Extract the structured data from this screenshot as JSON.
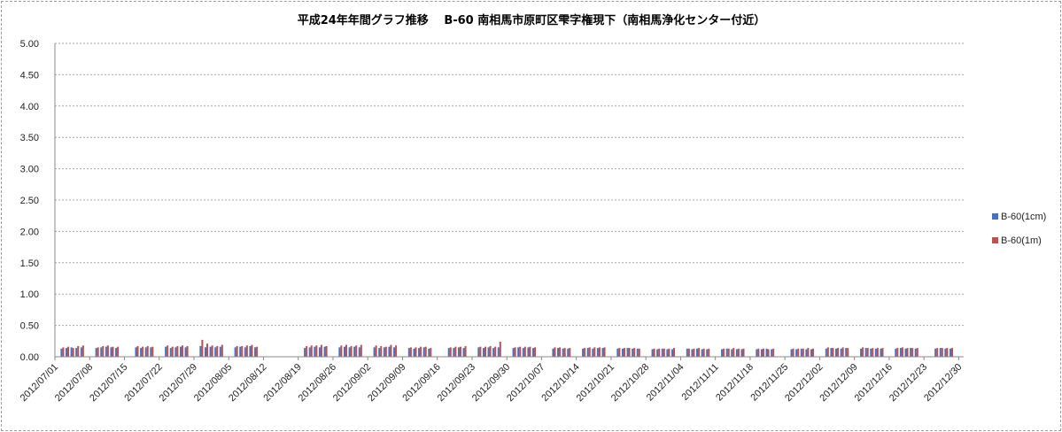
{
  "chart_data": {
    "type": "bar",
    "title": "平成24年年間グラフ推移　 B-60 南相馬市原町区雫字権現下（南相馬浄化センター付近）",
    "ylim": [
      0,
      5
    ],
    "yticks": [
      "0.00",
      "0.50",
      "1.00",
      "1.50",
      "2.00",
      "2.50",
      "3.00",
      "3.50",
      "4.00",
      "4.50",
      "5.00"
    ],
    "xtick_labels": [
      "2012/07/01",
      "2012/07/08",
      "2012/07/15",
      "2012/07/22",
      "2012/07/29",
      "2012/08/05",
      "2012/08/12",
      "2012/08/19",
      "2012/08/26",
      "2012/09/02",
      "2012/09/09",
      "2012/09/16",
      "2012/09/23",
      "2012/09/30",
      "2012/10/07",
      "2012/10/14",
      "2012/10/21",
      "2012/10/28",
      "2012/11/04",
      "2012/11/11",
      "2012/11/18",
      "2012/11/25",
      "2012/12/02",
      "2012/12/09",
      "2012/12/16",
      "2012/12/23",
      "2012/12/30"
    ],
    "x_start": "2012/07/01",
    "x_end": "2012/12/30",
    "grid": true,
    "legend_position": "right",
    "series": [
      {
        "name": "B-60(1cm)",
        "color": "#4472c4"
      },
      {
        "name": "B-60(1m)",
        "color": "#c0504d"
      }
    ],
    "data": [
      {
        "x": "2012/07/02",
        "v1": 0.13,
        "v2": 0.15
      },
      {
        "x": "2012/07/03",
        "v1": 0.14,
        "v2": 0.16
      },
      {
        "x": "2012/07/04",
        "v1": 0.15,
        "v2": 0.14
      },
      {
        "x": "2012/07/05",
        "v1": 0.14,
        "v2": 0.17
      },
      {
        "x": "2012/07/06",
        "v1": 0.15,
        "v2": 0.18
      },
      {
        "x": "2012/07/09",
        "v1": 0.14,
        "v2": 0.15
      },
      {
        "x": "2012/07/10",
        "v1": 0.15,
        "v2": 0.17
      },
      {
        "x": "2012/07/11",
        "v1": 0.16,
        "v2": 0.18
      },
      {
        "x": "2012/07/12",
        "v1": 0.15,
        "v2": 0.16
      },
      {
        "x": "2012/07/13",
        "v1": 0.14,
        "v2": 0.16
      },
      {
        "x": "2012/07/17",
        "v1": 0.15,
        "v2": 0.17
      },
      {
        "x": "2012/07/18",
        "v1": 0.14,
        "v2": 0.16
      },
      {
        "x": "2012/07/19",
        "v1": 0.15,
        "v2": 0.17
      },
      {
        "x": "2012/07/20",
        "v1": 0.15,
        "v2": 0.16
      },
      {
        "x": "2012/07/23",
        "v1": 0.16,
        "v2": 0.18
      },
      {
        "x": "2012/07/24",
        "v1": 0.14,
        "v2": 0.16
      },
      {
        "x": "2012/07/25",
        "v1": 0.15,
        "v2": 0.17
      },
      {
        "x": "2012/07/26",
        "v1": 0.16,
        "v2": 0.18
      },
      {
        "x": "2012/07/27",
        "v1": 0.15,
        "v2": 0.17
      },
      {
        "x": "2012/07/30",
        "v1": 0.17,
        "v2": 0.27
      },
      {
        "x": "2012/07/31",
        "v1": 0.15,
        "v2": 0.21
      },
      {
        "x": "2012/08/01",
        "v1": 0.16,
        "v2": 0.18
      },
      {
        "x": "2012/08/02",
        "v1": 0.15,
        "v2": 0.17
      },
      {
        "x": "2012/08/03",
        "v1": 0.16,
        "v2": 0.19
      },
      {
        "x": "2012/08/06",
        "v1": 0.15,
        "v2": 0.17
      },
      {
        "x": "2012/08/07",
        "v1": 0.16,
        "v2": 0.17
      },
      {
        "x": "2012/08/08",
        "v1": 0.15,
        "v2": 0.18
      },
      {
        "x": "2012/08/09",
        "v1": 0.17,
        "v2": 0.19
      },
      {
        "x": "2012/08/10",
        "v1": 0.15,
        "v2": 0.16
      },
      {
        "x": "2012/08/20",
        "v1": 0.14,
        "v2": 0.17
      },
      {
        "x": "2012/08/21",
        "v1": 0.15,
        "v2": 0.18
      },
      {
        "x": "2012/08/22",
        "v1": 0.16,
        "v2": 0.18
      },
      {
        "x": "2012/08/23",
        "v1": 0.15,
        "v2": 0.19
      },
      {
        "x": "2012/08/24",
        "v1": 0.16,
        "v2": 0.17
      },
      {
        "x": "2012/08/27",
        "v1": 0.15,
        "v2": 0.18
      },
      {
        "x": "2012/08/28",
        "v1": 0.16,
        "v2": 0.19
      },
      {
        "x": "2012/08/29",
        "v1": 0.15,
        "v2": 0.17
      },
      {
        "x": "2012/08/30",
        "v1": 0.16,
        "v2": 0.18
      },
      {
        "x": "2012/08/31",
        "v1": 0.15,
        "v2": 0.19
      },
      {
        "x": "2012/09/03",
        "v1": 0.15,
        "v2": 0.18
      },
      {
        "x": "2012/09/04",
        "v1": 0.14,
        "v2": 0.17
      },
      {
        "x": "2012/09/05",
        "v1": 0.15,
        "v2": 0.16
      },
      {
        "x": "2012/09/06",
        "v1": 0.16,
        "v2": 0.19
      },
      {
        "x": "2012/09/07",
        "v1": 0.15,
        "v2": 0.18
      },
      {
        "x": "2012/09/10",
        "v1": 0.14,
        "v2": 0.15
      },
      {
        "x": "2012/09/11",
        "v1": 0.13,
        "v2": 0.15
      },
      {
        "x": "2012/09/12",
        "v1": 0.14,
        "v2": 0.16
      },
      {
        "x": "2012/09/13",
        "v1": 0.15,
        "v2": 0.16
      },
      {
        "x": "2012/09/14",
        "v1": 0.13,
        "v2": 0.14
      },
      {
        "x": "2012/09/18",
        "v1": 0.14,
        "v2": 0.15
      },
      {
        "x": "2012/09/19",
        "v1": 0.14,
        "v2": 0.16
      },
      {
        "x": "2012/09/20",
        "v1": 0.15,
        "v2": 0.16
      },
      {
        "x": "2012/09/21",
        "v1": 0.14,
        "v2": 0.17
      },
      {
        "x": "2012/09/24",
        "v1": 0.15,
        "v2": 0.16
      },
      {
        "x": "2012/09/25",
        "v1": 0.14,
        "v2": 0.16
      },
      {
        "x": "2012/09/26",
        "v1": 0.15,
        "v2": 0.17
      },
      {
        "x": "2012/09/27",
        "v1": 0.14,
        "v2": 0.16
      },
      {
        "x": "2012/09/28",
        "v1": 0.15,
        "v2": 0.24
      },
      {
        "x": "2012/10/01",
        "v1": 0.14,
        "v2": 0.15
      },
      {
        "x": "2012/10/02",
        "v1": 0.15,
        "v2": 0.16
      },
      {
        "x": "2012/10/03",
        "v1": 0.14,
        "v2": 0.16
      },
      {
        "x": "2012/10/04",
        "v1": 0.15,
        "v2": 0.16
      },
      {
        "x": "2012/10/05",
        "v1": 0.14,
        "v2": 0.15
      },
      {
        "x": "2012/10/09",
        "v1": 0.13,
        "v2": 0.15
      },
      {
        "x": "2012/10/10",
        "v1": 0.14,
        "v2": 0.15
      },
      {
        "x": "2012/10/11",
        "v1": 0.13,
        "v2": 0.14
      },
      {
        "x": "2012/10/12",
        "v1": 0.13,
        "v2": 0.14
      },
      {
        "x": "2012/10/15",
        "v1": 0.13,
        "v2": 0.14
      },
      {
        "x": "2012/10/16",
        "v1": 0.14,
        "v2": 0.15
      },
      {
        "x": "2012/10/17",
        "v1": 0.13,
        "v2": 0.15
      },
      {
        "x": "2012/10/18",
        "v1": 0.14,
        "v2": 0.15
      },
      {
        "x": "2012/10/19",
        "v1": 0.14,
        "v2": 0.15
      },
      {
        "x": "2012/10/22",
        "v1": 0.13,
        "v2": 0.14
      },
      {
        "x": "2012/10/23",
        "v1": 0.13,
        "v2": 0.14
      },
      {
        "x": "2012/10/24",
        "v1": 0.14,
        "v2": 0.14
      },
      {
        "x": "2012/10/25",
        "v1": 0.13,
        "v2": 0.14
      },
      {
        "x": "2012/10/26",
        "v1": 0.13,
        "v2": 0.13
      },
      {
        "x": "2012/10/29",
        "v1": 0.12,
        "v2": 0.13
      },
      {
        "x": "2012/10/30",
        "v1": 0.12,
        "v2": 0.13
      },
      {
        "x": "2012/10/31",
        "v1": 0.13,
        "v2": 0.13
      },
      {
        "x": "2012/11/01",
        "v1": 0.12,
        "v2": 0.13
      },
      {
        "x": "2012/11/02",
        "v1": 0.12,
        "v2": 0.14
      },
      {
        "x": "2012/11/05",
        "v1": 0.13,
        "v2": 0.13
      },
      {
        "x": "2012/11/06",
        "v1": 0.12,
        "v2": 0.13
      },
      {
        "x": "2012/11/07",
        "v1": 0.13,
        "v2": 0.14
      },
      {
        "x": "2012/11/08",
        "v1": 0.12,
        "v2": 0.13
      },
      {
        "x": "2012/11/09",
        "v1": 0.12,
        "v2": 0.13
      },
      {
        "x": "2012/11/12",
        "v1": 0.12,
        "v2": 0.13
      },
      {
        "x": "2012/11/13",
        "v1": 0.13,
        "v2": 0.13
      },
      {
        "x": "2012/11/14",
        "v1": 0.12,
        "v2": 0.14
      },
      {
        "x": "2012/11/15",
        "v1": 0.12,
        "v2": 0.13
      },
      {
        "x": "2012/11/16",
        "v1": 0.12,
        "v2": 0.13
      },
      {
        "x": "2012/11/19",
        "v1": 0.12,
        "v2": 0.13
      },
      {
        "x": "2012/11/20",
        "v1": 0.12,
        "v2": 0.13
      },
      {
        "x": "2012/11/21",
        "v1": 0.13,
        "v2": 0.12
      },
      {
        "x": "2012/11/22",
        "v1": 0.12,
        "v2": 0.13
      },
      {
        "x": "2012/11/26",
        "v1": 0.12,
        "v2": 0.13
      },
      {
        "x": "2012/11/27",
        "v1": 0.12,
        "v2": 0.13
      },
      {
        "x": "2012/11/28",
        "v1": 0.13,
        "v2": 0.13
      },
      {
        "x": "2012/11/29",
        "v1": 0.12,
        "v2": 0.14
      },
      {
        "x": "2012/11/30",
        "v1": 0.12,
        "v2": 0.13
      },
      {
        "x": "2012/12/03",
        "v1": 0.13,
        "v2": 0.15
      },
      {
        "x": "2012/12/04",
        "v1": 0.14,
        "v2": 0.14
      },
      {
        "x": "2012/12/05",
        "v1": 0.13,
        "v2": 0.14
      },
      {
        "x": "2012/12/06",
        "v1": 0.13,
        "v2": 0.15
      },
      {
        "x": "2012/12/07",
        "v1": 0.14,
        "v2": 0.14
      },
      {
        "x": "2012/12/10",
        "v1": 0.13,
        "v2": 0.15
      },
      {
        "x": "2012/12/11",
        "v1": 0.14,
        "v2": 0.14
      },
      {
        "x": "2012/12/12",
        "v1": 0.13,
        "v2": 0.14
      },
      {
        "x": "2012/12/13",
        "v1": 0.13,
        "v2": 0.14
      },
      {
        "x": "2012/12/14",
        "v1": 0.13,
        "v2": 0.14
      },
      {
        "x": "2012/12/17",
        "v1": 0.13,
        "v2": 0.14
      },
      {
        "x": "2012/12/18",
        "v1": 0.14,
        "v2": 0.15
      },
      {
        "x": "2012/12/19",
        "v1": 0.13,
        "v2": 0.14
      },
      {
        "x": "2012/12/20",
        "v1": 0.14,
        "v2": 0.14
      },
      {
        "x": "2012/12/21",
        "v1": 0.13,
        "v2": 0.14
      },
      {
        "x": "2012/12/25",
        "v1": 0.13,
        "v2": 0.14
      },
      {
        "x": "2012/12/26",
        "v1": 0.14,
        "v2": 0.14
      },
      {
        "x": "2012/12/27",
        "v1": 0.13,
        "v2": 0.14
      },
      {
        "x": "2012/12/28",
        "v1": 0.13,
        "v2": 0.14
      }
    ]
  }
}
